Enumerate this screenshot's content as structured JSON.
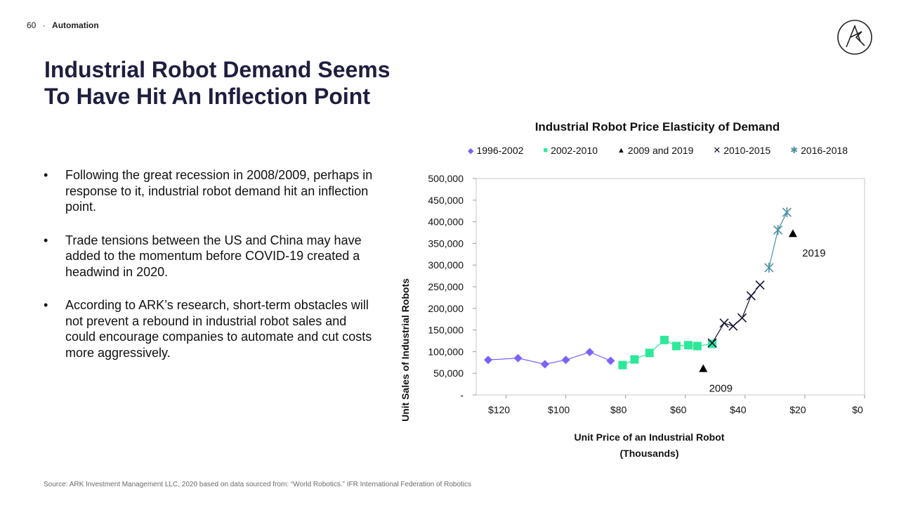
{
  "header": {
    "page_number": "60",
    "separator": "·",
    "section": "Automation"
  },
  "title": {
    "line1": "Industrial Robot Demand Seems",
    "line2": "To Have Hit An Inflection Point"
  },
  "bullets": [
    "Following the great recession in 2008/2009, perhaps in response to it, industrial robot demand hit an inflection point.",
    "Trade tensions between the US and China may have added to the momentum before COVID-19 created a headwind in 2020.",
    "According to ARK’s research, short-term obstacles will not prevent a rebound in industrial robot sales and could encourage companies to automate and cut costs more aggressively."
  ],
  "source": "Source: ARK Investment Management LLC, 2020 based on data sourced from: “World Robotics.” IFR International Federation of Robotics",
  "colors": {
    "title": "#1e1e3f",
    "s1": "#7b61ff",
    "s2": "#2ee89a",
    "s3": "#000000",
    "s4": "#111133",
    "s5": "#4a90a4"
  },
  "chart_data": {
    "type": "scatter",
    "title": "Industrial Robot Price Elasticity of Demand",
    "xlabel": "Unit Price of an Industrial Robot",
    "xlabel2": "(Thousands)",
    "ylabel": "Unit Sales of Industrial Robots",
    "xlim": [
      130,
      0
    ],
    "ylim": [
      0,
      500000
    ],
    "x_ticks": [
      "$120",
      "$100",
      "$80",
      "$60",
      "$40",
      "$20",
      "$0"
    ],
    "x_tick_values": [
      120,
      100,
      80,
      60,
      40,
      20,
      0
    ],
    "y_ticks": [
      "-",
      "50,000",
      "100,000",
      "150,000",
      "200,000",
      "250,000",
      "300,000",
      "350,000",
      "400,000",
      "450,000",
      "500,000"
    ],
    "y_tick_values": [
      0,
      50000,
      100000,
      150000,
      200000,
      250000,
      300000,
      350000,
      400000,
      450000,
      500000
    ],
    "series": [
      {
        "name": "1996-2002",
        "marker": "diamond",
        "color": "#7b61ff",
        "line": true,
        "x": [
          126,
          116,
          107,
          100,
          92,
          85
        ],
        "y": [
          81000,
          85000,
          71000,
          81000,
          99000,
          79000
        ]
      },
      {
        "name": "2002-2010",
        "marker": "square",
        "color": "#2ee89a",
        "line": true,
        "x": [
          81,
          77,
          72,
          67,
          63,
          59,
          56,
          51
        ],
        "y": [
          69000,
          82000,
          97000,
          127000,
          113000,
          115000,
          113000,
          118000
        ]
      },
      {
        "name": "2009 and 2019",
        "marker": "triangle",
        "color": "#000000",
        "line": false,
        "x": [
          54,
          24
        ],
        "y": [
          61000,
          373000
        ]
      },
      {
        "name": "2010-2015",
        "marker": "x",
        "color": "#111133",
        "line": true,
        "x": [
          51,
          47,
          44,
          41,
          38,
          35
        ],
        "y": [
          120000,
          166000,
          159000,
          178000,
          229000,
          254000
        ]
      },
      {
        "name": "2016-2018",
        "marker": "star",
        "color": "#4a90a4",
        "line": true,
        "x": [
          32,
          29,
          26
        ],
        "y": [
          294000,
          381000,
          422000
        ]
      }
    ],
    "annotations": [
      {
        "text": "2009",
        "x": 54,
        "y": 61000,
        "position": "below"
      },
      {
        "text": "2019",
        "x": 24,
        "y": 373000,
        "position": "below-right"
      }
    ]
  }
}
